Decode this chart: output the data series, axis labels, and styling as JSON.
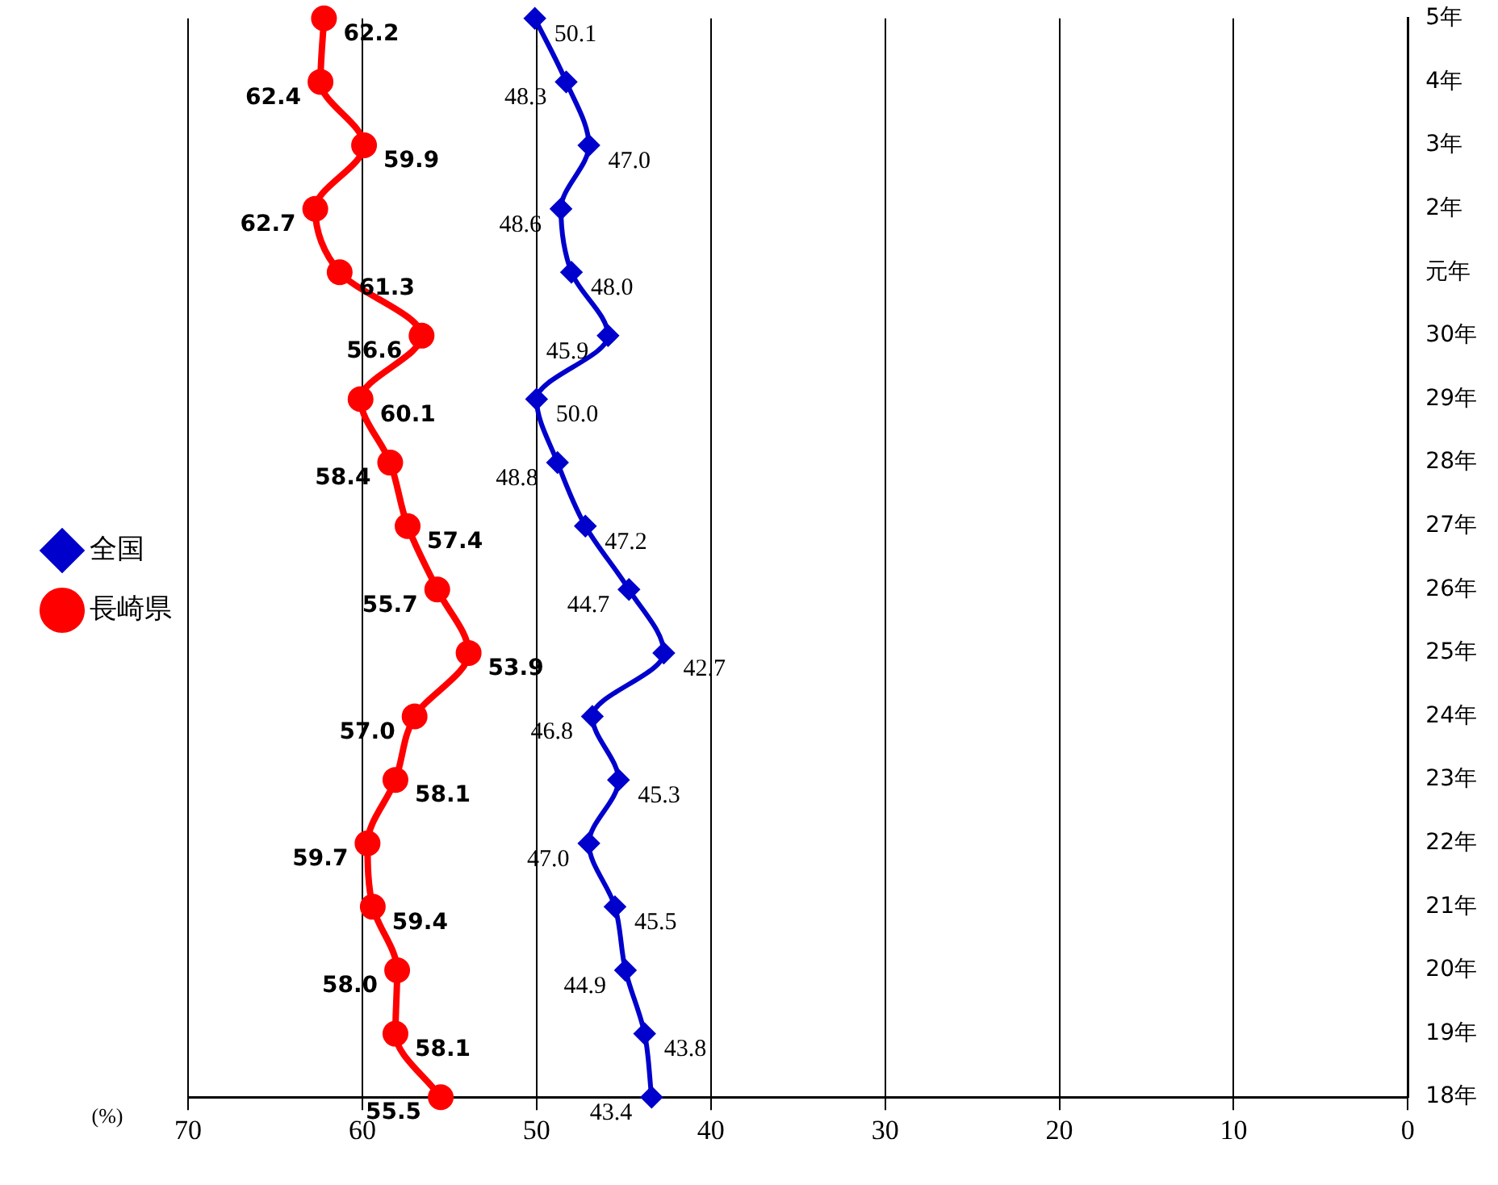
{
  "chart_data": {
    "type": "line",
    "orientation": "horizontal",
    "xlabel": "(%)",
    "categories": [
      "5年",
      "4年",
      "3年",
      "2年",
      "元年",
      "30年",
      "29年",
      "28年",
      "27年",
      "26年",
      "25年",
      "24年",
      "23年",
      "22年",
      "21年",
      "20年",
      "19年",
      "18年"
    ],
    "series": [
      {
        "name": "全国",
        "color": "#0000cc",
        "marker": "diamond",
        "values": [
          50.1,
          48.3,
          47.0,
          48.6,
          48.0,
          45.9,
          50.0,
          48.8,
          47.2,
          44.7,
          42.7,
          46.8,
          45.3,
          47.0,
          45.5,
          44.9,
          43.8,
          43.4
        ],
        "value_labels": [
          "50.1",
          "48.3",
          "47.0",
          "48.6",
          "48.0",
          "45.9",
          "50.0",
          "48.8",
          "47.2",
          "44.7",
          "42.7",
          "46.8",
          "45.3",
          "47.0",
          "45.5",
          "44.9",
          "43.8",
          "43.4"
        ]
      },
      {
        "name": "長崎県",
        "color": "#ff0000",
        "marker": "circle",
        "values": [
          62.2,
          62.4,
          59.9,
          62.7,
          61.3,
          56.6,
          60.1,
          58.4,
          57.4,
          55.7,
          53.9,
          57.0,
          58.1,
          59.7,
          59.4,
          58.0,
          58.1,
          55.5
        ],
        "value_labels": [
          "62.2",
          "62.4",
          "59.9",
          "62.7",
          "61.3",
          "56.6",
          "60.1",
          "58.4",
          "57.4",
          "55.7",
          "53.9",
          "57.0",
          "58.1",
          "59.7",
          "59.4",
          "58.0",
          "58.1",
          "55.5"
        ]
      }
    ],
    "xlim": [
      70,
      0
    ],
    "xticks": [
      70,
      60,
      50,
      40,
      30,
      20,
      10,
      0
    ],
    "grid": "x",
    "legend": "left"
  }
}
